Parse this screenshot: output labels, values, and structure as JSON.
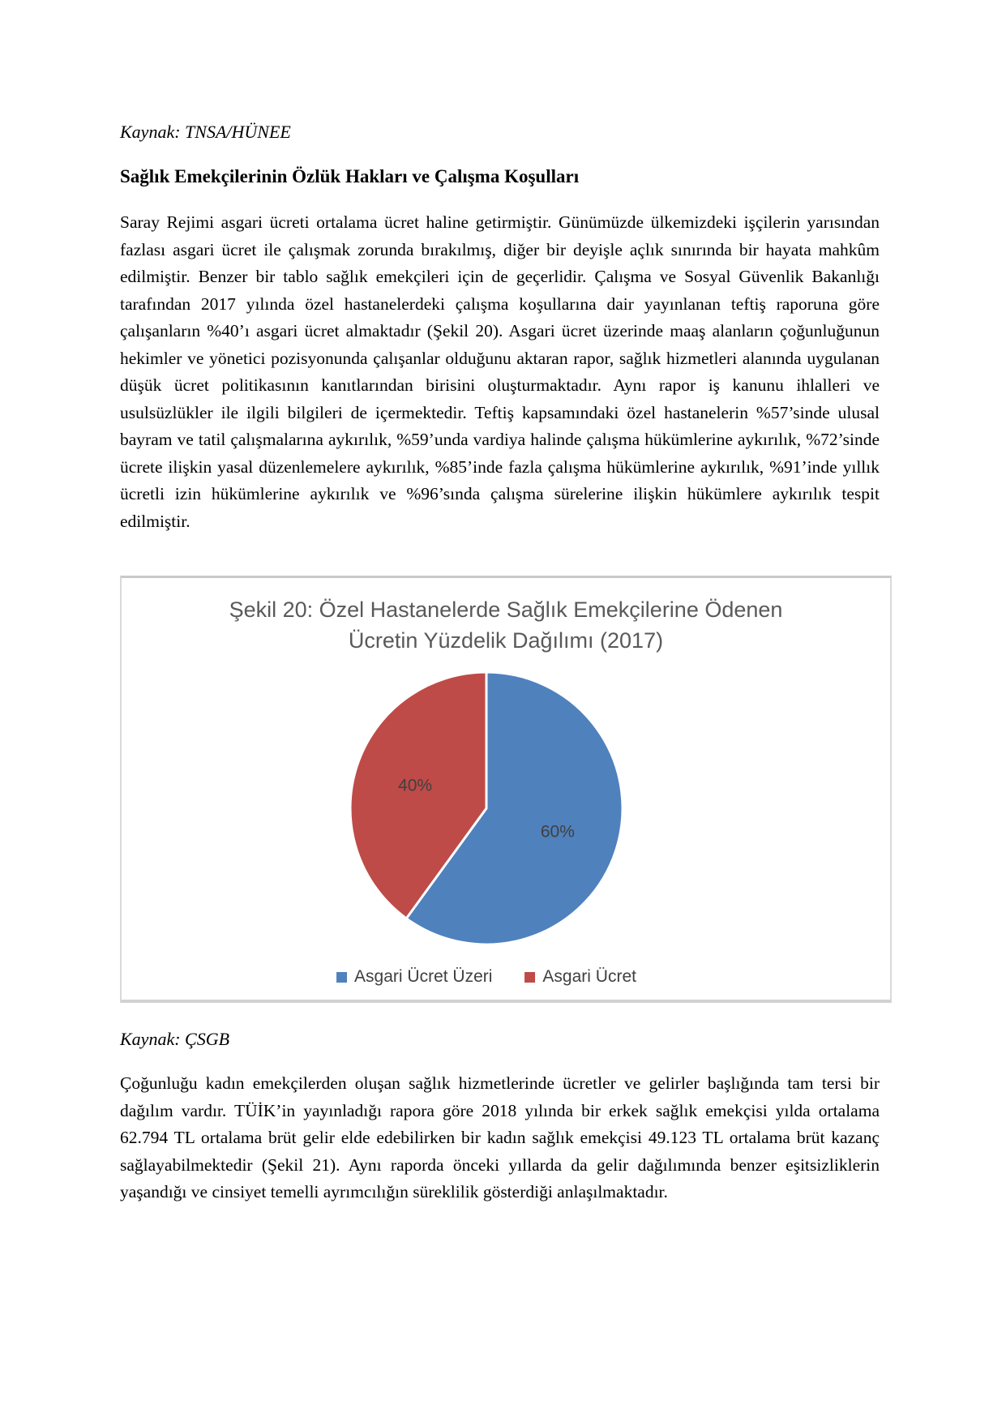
{
  "page": {
    "source_top": "Kaynak: TNSA/HÜNEE",
    "heading": "Sağlık Emekçilerinin Özlük Hakları ve Çalışma Koşulları",
    "paragraph1": "Saray Rejimi asgari ücreti ortalama ücret haline getirmiştir. Günümüzde ülkemizdeki işçilerin yarısından fazlası asgari ücret ile çalışmak zorunda bırakılmış, diğer bir deyişle açlık sınırında bir hayata mahkûm edilmiştir. Benzer bir tablo sağlık emekçileri için de geçerlidir. Çalışma ve Sosyal Güvenlik Bakanlığı tarafından 2017 yılında özel hastanelerdeki çalışma koşullarına dair yayınlanan teftiş raporuna göre çalışanların %40’ı asgari ücret almaktadır (Şekil 20). Asgari ücret üzerinde maaş alanların çoğunluğunun hekimler ve yönetici pozisyonunda çalışanlar olduğunu aktaran rapor, sağlık hizmetleri alanında uygulanan düşük ücret politikasının kanıtlarından birisini oluşturmaktadır. Aynı rapor iş kanunu ihlalleri ve usulsüzlükler ile ilgili bilgileri de içermektedir. Teftiş kapsamındaki özel hastanelerin %57’sinde ulusal bayram ve tatil çalışmalarına aykırılık, %59’unda vardiya halinde çalışma hükümlerine aykırılık, %72’sinde ücrete ilişkin yasal düzenlemelere aykırılık, %85’inde fazla çalışma hükümlerine aykırılık, %91’inde yıllık ücretli izin hükümlerine aykırılık ve %96’sında çalışma sürelerine ilişkin hükümlere aykırılık tespit edilmiştir.",
    "source_chart": "Kaynak: ÇSGB",
    "paragraph2": "Çoğunluğu kadın emekçilerden oluşan sağlık hizmetlerinde ücretler ve gelirler başlığında tam tersi bir dağılım vardır. TÜİK’in yayınladığı rapora göre 2018 yılında bir erkek sağlık emekçisi yılda ortalama 62.794 TL ortalama brüt gelir elde edebilirken bir kadın sağlık emekçisi 49.123 TL ortalama brüt kazanç sağlayabilmektedir (Şekil 21). Aynı raporda önceki yıllarda da gelir dağılımında benzer eşitsizliklerin yaşandığı ve cinsiyet temelli ayrımcılığın süreklilik gösterdiği anlaşılmaktadır."
  },
  "chart_data": {
    "type": "pie",
    "title": "Şekil 20: Özel Hastanelerde Sağlık Emekçilerine Ödenen Ücretin Yüzdelik Dağılımı (2017)",
    "title_lines": [
      "Şekil 20: Özel Hastanelerde Sağlık Emekçilerine Ödenen",
      "Ücretin Yüzdelik Dağılımı (2017)"
    ],
    "categories": [
      "Asgari Ücret Üzeri",
      "Asgari Ücret"
    ],
    "values": [
      60,
      40
    ],
    "labels": [
      "60%",
      "40%"
    ],
    "colors": [
      "#4F81BD",
      "#BE4B48"
    ],
    "start_angle_deg": 0,
    "direction": "clockwise",
    "legend_position": "bottom",
    "title_color": "#595959",
    "label_color": "#404040",
    "border_color": "#d9d9d9"
  }
}
